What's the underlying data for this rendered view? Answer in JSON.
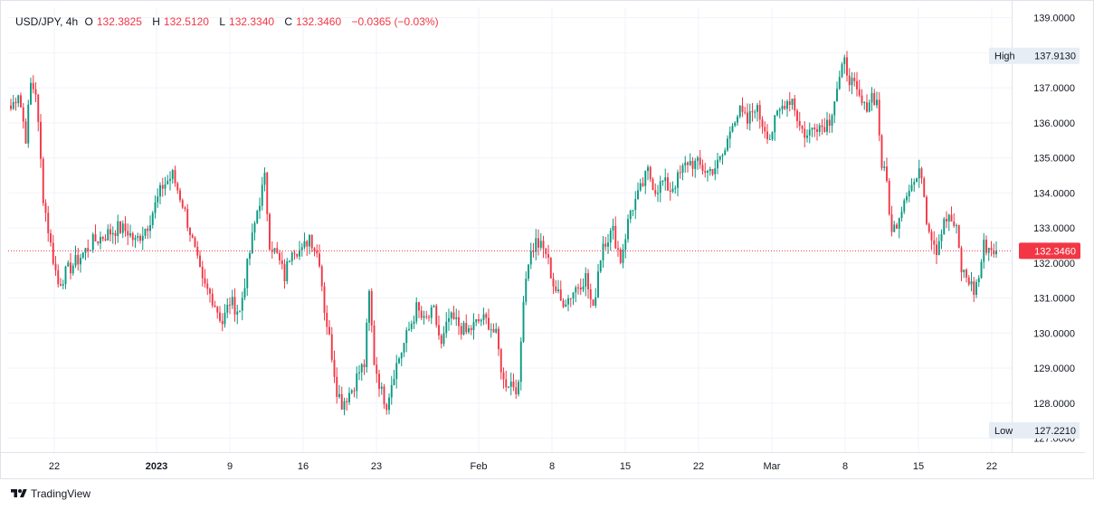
{
  "legend": {
    "symbol": "USD/JPY, 4h",
    "o_label": "O",
    "o_value": "132.3825",
    "h_label": "H",
    "h_value": "132.5120",
    "l_label": "L",
    "l_value": "132.3340",
    "c_label": "C",
    "c_value": "132.3460",
    "change": "−0.0365 (−0.03%)"
  },
  "branding": {
    "name": "TradingView",
    "logo_icon": "tradingview-logo-icon"
  },
  "colors": {
    "up": "#089981",
    "down": "#f23645",
    "grid": "#f0f3fa",
    "axis_text": "#131722",
    "border": "#e0e3eb",
    "label_bg": "#e6edf5"
  },
  "chart_data": {
    "type": "candlestick",
    "symbol": "USD/JPY",
    "timeframe": "4h",
    "ylim": [
      126.6,
      139.3
    ],
    "y_ticks": [
      "139.0000",
      "138.0000",
      "137.0000",
      "136.0000",
      "135.0000",
      "134.0000",
      "133.0000",
      "132.0000",
      "131.0000",
      "130.0000",
      "129.0000",
      "128.0000",
      "127.0000"
    ],
    "x_ticks": [
      "22",
      "2023",
      "9",
      "16",
      "23",
      "Feb",
      "8",
      "15",
      "22",
      "Mar",
      "8",
      "15",
      "22"
    ],
    "last_price": "132.3460",
    "high": {
      "label": "High",
      "value": "137.9130"
    },
    "low": {
      "label": "Low",
      "value": "127.2210"
    },
    "grid": true,
    "path_points": [
      [
        0,
        136.4
      ],
      [
        3,
        136.9
      ],
      [
        6,
        135.6
      ],
      [
        8,
        137.1
      ],
      [
        10,
        136.9
      ],
      [
        13,
        133.9
      ],
      [
        16,
        132.5
      ],
      [
        19,
        131.4
      ],
      [
        23,
        131.8
      ],
      [
        27,
        132.1
      ],
      [
        33,
        132.6
      ],
      [
        38,
        132.8
      ],
      [
        43,
        133.0
      ],
      [
        47,
        132.9
      ],
      [
        50,
        132.6
      ],
      [
        55,
        133.1
      ],
      [
        61,
        134.2
      ],
      [
        65,
        134.5
      ],
      [
        69,
        133.7
      ],
      [
        72,
        132.9
      ],
      [
        77,
        131.4
      ],
      [
        81,
        131.0
      ],
      [
        85,
        130.3
      ],
      [
        88,
        130.9
      ],
      [
        92,
        130.6
      ],
      [
        95,
        131.9
      ],
      [
        99,
        133.5
      ],
      [
        102,
        134.4
      ],
      [
        104,
        132.6
      ],
      [
        107,
        132.2
      ],
      [
        110,
        131.6
      ],
      [
        113,
        132.5
      ],
      [
        117,
        132.3
      ],
      [
        120,
        132.8
      ],
      [
        124,
        132.1
      ],
      [
        126,
        130.7
      ],
      [
        129,
        129.4
      ],
      [
        131,
        128.4
      ],
      [
        133,
        128.0
      ],
      [
        137,
        128.4
      ],
      [
        140,
        128.9
      ],
      [
        142,
        129.1
      ],
      [
        144,
        131.1
      ],
      [
        146,
        129.2
      ],
      [
        149,
        128.3
      ],
      [
        151,
        128.0
      ],
      [
        154,
        128.9
      ],
      [
        157,
        129.5
      ],
      [
        160,
        130.1
      ],
      [
        163,
        130.7
      ],
      [
        166,
        130.3
      ],
      [
        170,
        130.6
      ],
      [
        173,
        129.6
      ],
      [
        176,
        130.4
      ],
      [
        179,
        130.3
      ],
      [
        183,
        130.0
      ],
      [
        186,
        130.2
      ],
      [
        189,
        130.4
      ],
      [
        192,
        130.3
      ],
      [
        195,
        129.9
      ],
      [
        198,
        128.6
      ],
      [
        201,
        128.6
      ],
      [
        204,
        128.4
      ],
      [
        206,
        131.1
      ],
      [
        208,
        132.1
      ],
      [
        211,
        132.6
      ],
      [
        215,
        132.3
      ],
      [
        218,
        131.4
      ],
      [
        221,
        130.9
      ],
      [
        224,
        131.0
      ],
      [
        227,
        131.3
      ],
      [
        231,
        131.6
      ],
      [
        234,
        130.6
      ],
      [
        236,
        131.8
      ],
      [
        238,
        132.6
      ],
      [
        242,
        132.9
      ],
      [
        245,
        132.1
      ],
      [
        249,
        133.5
      ],
      [
        252,
        133.9
      ],
      [
        256,
        134.6
      ],
      [
        259,
        134.1
      ],
      [
        262,
        134.3
      ],
      [
        265,
        134.1
      ],
      [
        268,
        134.4
      ],
      [
        272,
        134.9
      ],
      [
        276,
        134.8
      ],
      [
        280,
        134.6
      ],
      [
        284,
        134.8
      ],
      [
        287,
        135.2
      ],
      [
        290,
        136.1
      ],
      [
        293,
        136.3
      ],
      [
        296,
        136.0
      ],
      [
        299,
        136.5
      ],
      [
        302,
        136.0
      ],
      [
        305,
        135.6
      ],
      [
        308,
        136.2
      ],
      [
        311,
        136.6
      ],
      [
        314,
        136.7
      ],
      [
        317,
        135.9
      ],
      [
        320,
        135.6
      ],
      [
        323,
        136.0
      ],
      [
        326,
        135.9
      ],
      [
        329,
        136.1
      ],
      [
        332,
        137.0
      ],
      [
        335,
        137.7
      ],
      [
        337,
        137.3
      ],
      [
        340,
        136.8
      ],
      [
        343,
        136.4
      ],
      [
        346,
        136.8
      ],
      [
        348,
        136.6
      ],
      [
        350,
        134.8
      ],
      [
        352,
        134.3
      ],
      [
        354,
        132.8
      ],
      [
        357,
        133.4
      ],
      [
        360,
        134.1
      ],
      [
        363,
        134.3
      ],
      [
        366,
        134.6
      ],
      [
        368,
        133.3
      ],
      [
        370,
        132.8
      ],
      [
        372,
        132.4
      ],
      [
        375,
        133.3
      ],
      [
        378,
        133.2
      ],
      [
        380,
        132.9
      ],
      [
        382,
        131.8
      ],
      [
        385,
        131.5
      ],
      [
        387,
        131.2
      ],
      [
        389,
        131.6
      ],
      [
        391,
        132.5
      ],
      [
        394,
        132.4
      ],
      [
        396,
        132.35
      ]
    ]
  }
}
